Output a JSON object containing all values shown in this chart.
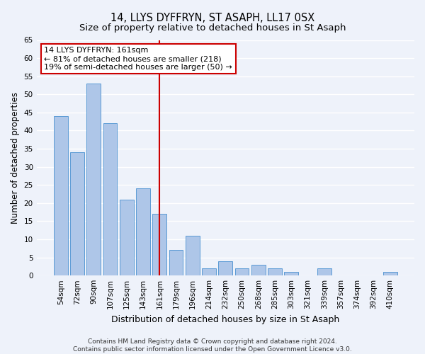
{
  "title": "14, LLYS DYFFRYN, ST ASAPH, LL17 0SX",
  "subtitle": "Size of property relative to detached houses in St Asaph",
  "xlabel": "Distribution of detached houses by size in St Asaph",
  "ylabel": "Number of detached properties",
  "categories": [
    "54sqm",
    "72sqm",
    "90sqm",
    "107sqm",
    "125sqm",
    "143sqm",
    "161sqm",
    "179sqm",
    "196sqm",
    "214sqm",
    "232sqm",
    "250sqm",
    "268sqm",
    "285sqm",
    "303sqm",
    "321sqm",
    "339sqm",
    "357sqm",
    "374sqm",
    "392sqm",
    "410sqm"
  ],
  "values": [
    44,
    34,
    53,
    42,
    21,
    24,
    17,
    7,
    11,
    2,
    4,
    2,
    3,
    2,
    1,
    0,
    2,
    0,
    0,
    0,
    1
  ],
  "bar_color": "#aec6e8",
  "bar_edge_color": "#5b9bd5",
  "bar_width": 0.85,
  "ylim": [
    0,
    65
  ],
  "yticks": [
    0,
    5,
    10,
    15,
    20,
    25,
    30,
    35,
    40,
    45,
    50,
    55,
    60,
    65
  ],
  "vline_index": 6,
  "vline_color": "#cc0000",
  "annotation_text": "14 LLYS DYFFRYN: 161sqm\n← 81% of detached houses are smaller (218)\n19% of semi-detached houses are larger (50) →",
  "annotation_box_color": "#ffffff",
  "annotation_box_edge_color": "#cc0000",
  "footer_line1": "Contains HM Land Registry data © Crown copyright and database right 2024.",
  "footer_line2": "Contains public sector information licensed under the Open Government Licence v3.0.",
  "background_color": "#eef2fa",
  "grid_color": "#ffffff",
  "title_fontsize": 10.5,
  "subtitle_fontsize": 9.5,
  "tick_fontsize": 7.5,
  "ylabel_fontsize": 8.5,
  "xlabel_fontsize": 9,
  "annotation_fontsize": 8,
  "footer_fontsize": 6.5
}
